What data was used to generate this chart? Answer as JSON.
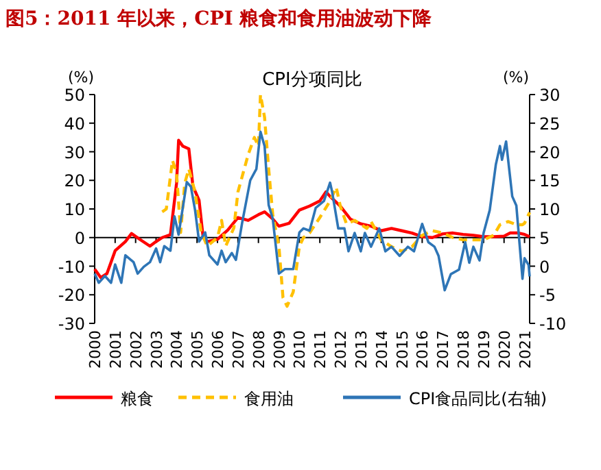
{
  "chart_data": {
    "type": "line",
    "title": "图5：2011 年以来，CPI 粮食和食用油波动下降",
    "subtitle": "CPI分项同比",
    "ylabel": "(%)",
    "y2label": "(%)",
    "xlim": [
      2000,
      2021.25
    ],
    "xticks": [
      2000,
      2001,
      2002,
      2003,
      2004,
      2005,
      2006,
      2007,
      2008,
      2009,
      2010,
      2011,
      2012,
      2013,
      2014,
      2015,
      2016,
      2017,
      2018,
      2019,
      2020,
      2021
    ],
    "ylim": [
      -30,
      50
    ],
    "yticks": [
      -30,
      -20,
      -10,
      0,
      10,
      20,
      30,
      40,
      50
    ],
    "y2lim": [
      -10,
      30
    ],
    "y2ticks": [
      -10,
      -5,
      0,
      5,
      10,
      15,
      20,
      25,
      30
    ],
    "legend": "bottom",
    "series": [
      {
        "name": "粮食",
        "color": "#ff0000",
        "line_style": "solid",
        "x": [
          2000,
          2000.3,
          2000.6,
          2001,
          2001.5,
          2001.8,
          2002.2,
          2002.7,
          2003,
          2003.3,
          2003.7,
          2004,
          2004.1,
          2004.3,
          2004.6,
          2004.8,
          2005.1,
          2005.3,
          2005.5,
          2006,
          2006.5,
          2007,
          2007.5,
          2008,
          2008.3,
          2008.7,
          2009,
          2009.5,
          2010,
          2010.5,
          2011,
          2011.3,
          2011.5,
          2012,
          2012.5,
          2013,
          2013.5,
          2014,
          2014.5,
          2015,
          2015.5,
          2016,
          2016.5,
          2017,
          2017.5,
          2018,
          2018.5,
          2019,
          2019.5,
          2020,
          2020.3,
          2020.7,
          2021,
          2021.25
        ],
        "values": [
          -11,
          -14,
          -12.6,
          -4.6,
          -1.4,
          1.4,
          -0.6,
          -3,
          -1.4,
          0,
          1,
          19,
          34,
          32,
          31,
          18,
          13,
          0,
          -1.4,
          -0.6,
          2.6,
          7,
          6,
          8,
          9,
          6.5,
          4,
          5,
          9.6,
          11,
          12.8,
          16,
          14.4,
          11,
          6.4,
          4.8,
          4,
          2.4,
          3.2,
          2.4,
          1.6,
          0.3,
          0,
          1.3,
          1.6,
          1.1,
          0.8,
          0.3,
          0.3,
          0.5,
          1.6,
          1.6,
          1.1,
          0.3
        ]
      },
      {
        "name": "食用油",
        "color": "#ffc000",
        "line_style": "dashed",
        "x": [
          2003.3,
          2003.5,
          2003.8,
          2004,
          2004.2,
          2004.4,
          2004.6,
          2004.9,
          2005.2,
          2005.5,
          2006,
          2006.2,
          2006.4,
          2006.8,
          2007,
          2007.5,
          2007.8,
          2008,
          2008.1,
          2008.3,
          2008.5,
          2008.7,
          2009,
          2009.2,
          2009.4,
          2009.7,
          2010,
          2010.2,
          2010.5,
          2011,
          2011.5,
          2011.8,
          2012,
          2012.3,
          2012.7,
          2013.3,
          2013.5,
          2014,
          2014.5,
          2015,
          2015.5,
          2016,
          2016.5,
          2017,
          2017.5,
          2018,
          2018.5,
          2019,
          2019.5,
          2019.8,
          2020.2,
          2020.6,
          2020.9,
          2021,
          2021.25
        ],
        "values": [
          9,
          10,
          27,
          22.5,
          1.8,
          19,
          24,
          16,
          2,
          -3,
          0,
          6,
          -3,
          3.4,
          16,
          29,
          35,
          32,
          50,
          42,
          24,
          8,
          -3,
          -21,
          -24,
          -19,
          -3,
          0,
          1.6,
          7,
          12.8,
          17.6,
          11,
          4.8,
          6,
          3.2,
          5.6,
          -0.8,
          -3.2,
          -4.8,
          -3.2,
          0.8,
          2.4,
          1.6,
          0,
          -0.8,
          -0.8,
          -0.8,
          0.8,
          4.5,
          5.6,
          4.5,
          4.5,
          5,
          8.8
        ]
      },
      {
        "name": "CPI食品同比(右轴)",
        "color": "#2e75b6",
        "line_style": "solid",
        "axis": "y2",
        "x": [
          2000,
          2000.2,
          2000.5,
          2000.8,
          2001,
          2001.3,
          2001.5,
          2001.9,
          2002.1,
          2002.4,
          2002.7,
          2003,
          2003.2,
          2003.4,
          2003.7,
          2003.9,
          2004.1,
          2004.5,
          2004.7,
          2004.9,
          2005.1,
          2005.4,
          2005.6,
          2006,
          2006.2,
          2006.4,
          2006.7,
          2006.9,
          2007.2,
          2007.6,
          2007.9,
          2008.1,
          2008.3,
          2008.5,
          2008.7,
          2009,
          2009.3,
          2009.7,
          2010,
          2010.2,
          2010.5,
          2010.8,
          2011.2,
          2011.5,
          2011.6,
          2011.9,
          2012.2,
          2012.4,
          2012.7,
          2013,
          2013.2,
          2013.5,
          2013.9,
          2014.2,
          2014.5,
          2014.9,
          2015.3,
          2015.6,
          2016,
          2016.3,
          2016.6,
          2016.8,
          2017.1,
          2017.4,
          2017.8,
          2018.1,
          2018.3,
          2018.5,
          2018.8,
          2019,
          2019.3,
          2019.6,
          2019.8,
          2019.9,
          2020.1,
          2020.4,
          2020.6,
          2020.9,
          2021,
          2021.2,
          2021.25
        ],
        "values": [
          -1.3,
          -2.9,
          -1.7,
          -2.9,
          0.3,
          -2.9,
          1.9,
          0.7,
          -1.3,
          -0.1,
          0.7,
          3.1,
          0.7,
          3.5,
          2.7,
          8.7,
          5.5,
          14.7,
          13.9,
          9.9,
          4.3,
          5.9,
          1.9,
          0.3,
          2.7,
          0.7,
          2.3,
          1.1,
          7.5,
          15,
          17,
          23.5,
          21,
          10.7,
          8.3,
          -1.3,
          -0.5,
          -0.5,
          5.9,
          6.6,
          6.2,
          10.2,
          11.4,
          14.6,
          13,
          6.6,
          6.6,
          2.6,
          5.8,
          2.6,
          5.8,
          3.4,
          6.6,
          2.6,
          3.4,
          1.8,
          3.4,
          2.6,
          7.4,
          4.2,
          3.4,
          1.8,
          -4.2,
          -1.4,
          -0.6,
          4.2,
          0.6,
          3.4,
          1,
          5.8,
          9.8,
          17.8,
          21,
          18.6,
          21.8,
          12.2,
          10.6,
          -2.2,
          1.4,
          0.2,
          -1.8
        ]
      }
    ]
  }
}
